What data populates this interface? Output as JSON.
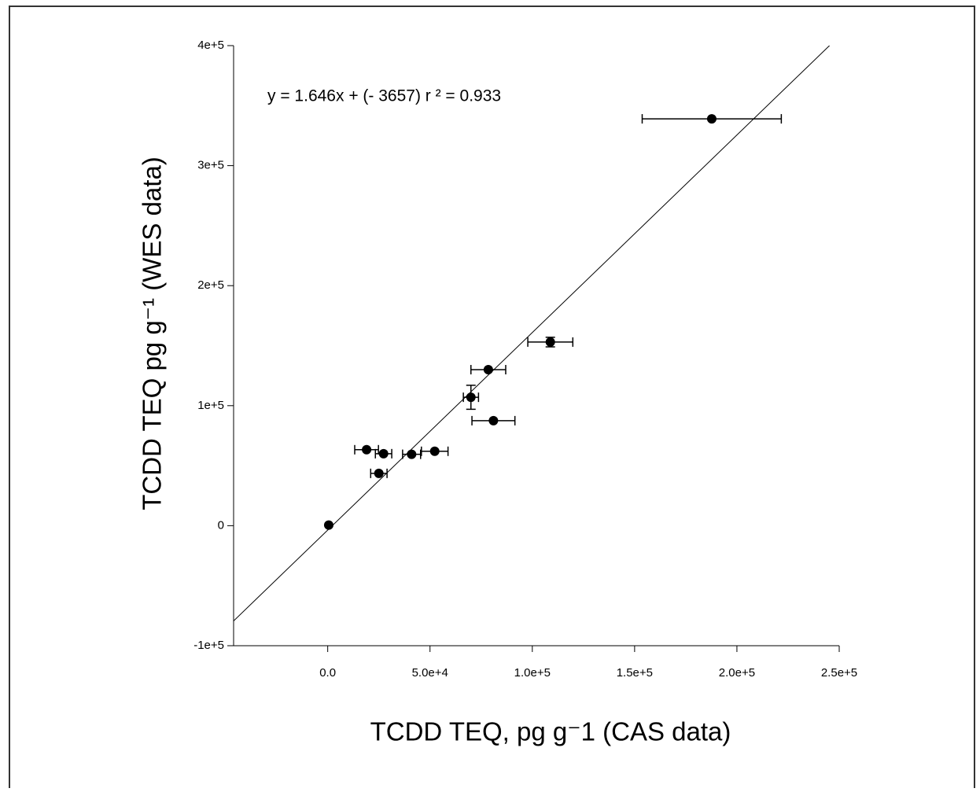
{
  "chart_data": {
    "type": "scatter",
    "annotation": "y = 1.646x  + (- 3657)  r ² = 0.933",
    "x_label": "TCDD TEQ, pg g⁻1  (CAS data)",
    "y_label": "TCDD TEQ pg g⁻¹ (WES data)",
    "color": "#000000",
    "x": [
      500,
      19000,
      27300,
      25000,
      41000,
      52300,
      70000,
      78500,
      81000,
      108800,
      187700
    ],
    "values": [
      500,
      63300,
      60000,
      43600,
      59500,
      62000,
      107000,
      130000,
      87500,
      153000,
      339000
    ],
    "xerr": [
      null,
      5800,
      4000,
      4000,
      4400,
      6500,
      3700,
      8500,
      10500,
      11000,
      34000
    ],
    "yerr": [
      null,
      null,
      null,
      null,
      null,
      null,
      10000,
      null,
      null,
      4000,
      null
    ],
    "fit_line": {
      "slope": 1.646,
      "intercept": -3657
    },
    "xlim": [
      -46000,
      250000
    ],
    "ylim": [
      -100000,
      400000
    ],
    "xticks": [
      {
        "value": 0,
        "label": "0.0"
      },
      {
        "value": 50000,
        "label": "5.0e+4"
      },
      {
        "value": 100000,
        "label": "1.0e+5"
      },
      {
        "value": 150000,
        "label": "1.5e+5"
      },
      {
        "value": 200000,
        "label": "2.0e+5"
      },
      {
        "value": 250000,
        "label": "2.5e+5"
      }
    ],
    "yticks": [
      {
        "value": -100000,
        "label": "-1e+5"
      },
      0,
      {
        "value": 100000,
        "label": "1e+5"
      },
      {
        "value": 200000,
        "label": "2e+5"
      },
      {
        "value": 300000,
        "label": "3e+5"
      },
      {
        "value": 400000,
        "label": "4e+5"
      }
    ]
  }
}
